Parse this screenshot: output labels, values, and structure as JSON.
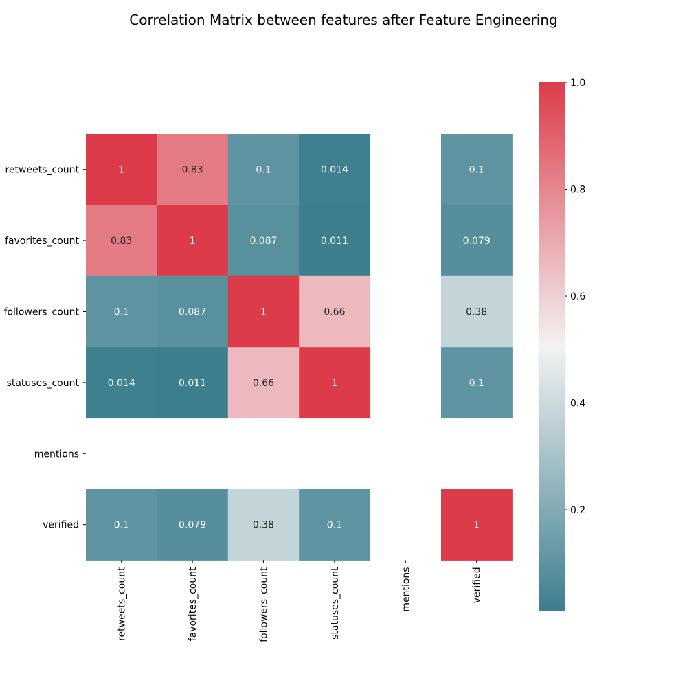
{
  "chart_data": {
    "type": "heatmap",
    "title": "Correlation Matrix between features after Feature Engineering",
    "rows": [
      "retweets_count",
      "favorites_count",
      "followers_count",
      "statuses_count",
      "mentions",
      "verified"
    ],
    "columns": [
      "retweets_count",
      "favorites_count",
      "followers_count",
      "statuses_count",
      "mentions",
      "verified"
    ],
    "values": [
      [
        1,
        0.83,
        0.1,
        0.014,
        null,
        0.1
      ],
      [
        0.83,
        1,
        0.087,
        0.011,
        null,
        0.079
      ],
      [
        0.1,
        0.087,
        1,
        0.66,
        null,
        0.38
      ],
      [
        0.014,
        0.011,
        0.66,
        1,
        null,
        0.1
      ],
      [
        null,
        null,
        null,
        null,
        null,
        null
      ],
      [
        0.1,
        0.079,
        0.38,
        0.1,
        null,
        1
      ]
    ],
    "labels": [
      [
        "1",
        "0.83",
        "0.1",
        "0.014",
        "",
        "0.1"
      ],
      [
        "0.83",
        "1",
        "0.087",
        "0.011",
        "",
        "0.079"
      ],
      [
        "0.1",
        "0.087",
        "1",
        "0.66",
        "",
        "0.38"
      ],
      [
        "0.014",
        "0.011",
        "0.66",
        "1",
        "",
        "0.1"
      ],
      [
        "",
        "",
        "",
        "",
        "",
        ""
      ],
      [
        "0.1",
        "0.079",
        "0.38",
        "0.1",
        "",
        "1"
      ]
    ],
    "colorbar": {
      "range": [
        0.011,
        1.0
      ],
      "ticks": [
        "0.2",
        "0.4",
        "0.6",
        "0.8",
        "1.0"
      ],
      "tick_values": [
        0.2,
        0.4,
        0.6,
        0.8,
        1.0
      ]
    },
    "colormap": {
      "low": "#3d7e8f",
      "mid": "#f2f2f2",
      "high": "#dc3c4a",
      "mid_value": 0.5
    },
    "legend": "right colorbar",
    "grid": false
  }
}
